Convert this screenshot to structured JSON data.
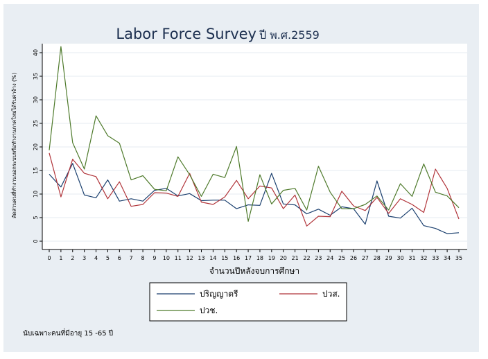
{
  "chart_data": {
    "type": "line",
    "title": "Labor Force Survey",
    "title_suffix": "ปี พ.ศ.2559",
    "xlabel": "จำนวนปีหลังจบการศึกษา",
    "ylabel": "สัดส่วนคนที่ทำงานนอกระบบหรือทำงานภาคใหม่ได้รับค่าจ้าง (%)",
    "x": [
      0,
      1,
      2,
      3,
      4,
      5,
      6,
      7,
      8,
      9,
      10,
      11,
      12,
      13,
      14,
      15,
      16,
      17,
      18,
      19,
      20,
      21,
      22,
      23,
      24,
      25,
      26,
      27,
      28,
      29,
      30,
      31,
      32,
      33,
      34,
      35
    ],
    "yticks": [
      0,
      5,
      10,
      15,
      20,
      25,
      30,
      35,
      40
    ],
    "ylim": [
      0,
      42
    ],
    "xlim": [
      0,
      35
    ],
    "grid": true,
    "legend_position": "bottom",
    "series": [
      {
        "name": "ปริญญาตรี",
        "color": "#1a3f6e",
        "values": [
          14.2,
          11.5,
          16.5,
          9.8,
          9.2,
          13.0,
          8.5,
          9.0,
          8.5,
          10.8,
          11.2,
          9.6,
          10.1,
          8.6,
          8.7,
          8.7,
          6.9,
          7.7,
          7.6,
          14.4,
          7.9,
          7.7,
          5.8,
          6.8,
          5.5,
          7.3,
          6.9,
          3.6,
          12.8,
          5.3,
          4.9,
          7.0,
          3.3,
          2.7,
          1.6,
          1.8
        ]
      },
      {
        "name": "ปวส.",
        "color": "#b1343a",
        "values": [
          18.7,
          9.4,
          17.4,
          14.4,
          13.7,
          9.0,
          12.6,
          7.4,
          7.8,
          10.3,
          10.2,
          9.5,
          14.4,
          8.3,
          7.8,
          9.4,
          12.9,
          9.0,
          11.7,
          11.3,
          6.9,
          9.8,
          3.2,
          5.3,
          5.2,
          10.6,
          7.5,
          6.5,
          9.3,
          5.9,
          9.0,
          7.8,
          6.1,
          15.3,
          11.2,
          4.7
        ]
      },
      {
        "name": "ปวช.",
        "color": "#4e7a2b",
        "values": [
          19.3,
          41.3,
          20.9,
          15.3,
          26.6,
          22.4,
          20.8,
          13.0,
          13.9,
          11.0,
          10.7,
          17.9,
          14.1,
          9.5,
          14.2,
          13.5,
          20.1,
          4.2,
          14.1,
          7.9,
          10.8,
          11.2,
          6.6,
          15.9,
          10.4,
          6.9,
          6.9,
          7.8,
          9.6,
          6.6,
          12.2,
          9.5,
          16.4,
          10.4,
          9.6,
          7.1
        ]
      }
    ]
  },
  "note": "นับเฉพาะคนที่มีอายุ 15 -65 ปี"
}
